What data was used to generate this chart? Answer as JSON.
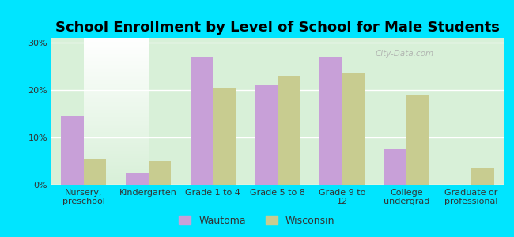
{
  "title": "School Enrollment by Level of School for Male Students",
  "categories": [
    "Nursery,\npreschool",
    "Kindergarten",
    "Grade 1 to 4",
    "Grade 5 to 8",
    "Grade 9 to\n12",
    "College\nundergrad",
    "Graduate or\nprofessional"
  ],
  "wautoma": [
    14.5,
    2.5,
    27.0,
    21.0,
    27.0,
    7.5,
    0.0
  ],
  "wisconsin": [
    5.5,
    5.0,
    20.5,
    23.0,
    23.5,
    19.0,
    3.5
  ],
  "wautoma_color": "#c8a0d8",
  "wisconsin_color": "#c8cc90",
  "background_outer": "#00e5ff",
  "background_inner_top": "#ffffff",
  "background_inner_bottom": "#d8f0d8",
  "ylim": [
    0,
    31
  ],
  "yticks": [
    0,
    10,
    20,
    30
  ],
  "ytick_labels": [
    "0%",
    "10%",
    "20%",
    "30%"
  ],
  "bar_width": 0.35,
  "title_fontsize": 13,
  "axis_fontsize": 8,
  "legend_labels": [
    "Wautoma",
    "Wisconsin"
  ],
  "watermark": "City-Data.com"
}
